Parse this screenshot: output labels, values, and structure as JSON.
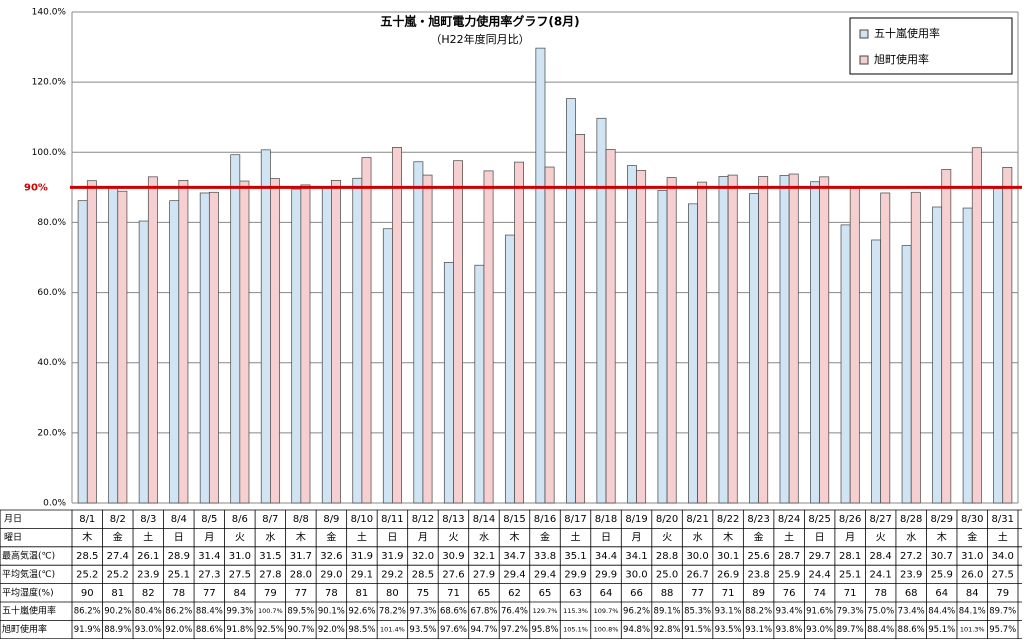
{
  "chart_data": {
    "type": "bar",
    "title": "五十嵐・旭町電力使用率グラフ(8月)",
    "subtitle": "（H22年度同月比）",
    "categories": [
      "8/1",
      "8/2",
      "8/3",
      "8/4",
      "8/5",
      "8/6",
      "8/7",
      "8/8",
      "8/9",
      "8/10",
      "8/11",
      "8/12",
      "8/13",
      "8/14",
      "8/15",
      "8/16",
      "8/17",
      "8/18",
      "8/19",
      "8/20",
      "8/21",
      "8/22",
      "8/23",
      "8/24",
      "8/25",
      "8/26",
      "8/27",
      "8/28",
      "8/29",
      "8/30",
      "8/31"
    ],
    "series": [
      {
        "name": "五十嵐使用率",
        "color": "#d0e4f4",
        "values": [
          86.2,
          90.2,
          80.4,
          86.2,
          88.4,
          99.3,
          100.7,
          89.5,
          90.1,
          92.6,
          78.2,
          97.3,
          68.6,
          67.8,
          76.4,
          129.7,
          115.3,
          109.7,
          96.2,
          89.1,
          85.3,
          93.1,
          88.2,
          93.4,
          91.6,
          79.3,
          75.0,
          73.4,
          84.4,
          84.1,
          89.7
        ],
        "value_labels": [
          "86.2%",
          "90.2%",
          "80.4%",
          "86.2%",
          "88.4%",
          "99.3%",
          "100.7%",
          "89.5%",
          "90.1%",
          "92.6%",
          "78.2%",
          "97.3%",
          "68.6%",
          "67.8%",
          "76.4%",
          "129.7%",
          "115.3%",
          "109.7%",
          "96.2%",
          "89.1%",
          "85.3%",
          "93.1%",
          "88.2%",
          "93.4%",
          "91.6%",
          "79.3%",
          "75.0%",
          "73.4%",
          "84.4%",
          "84.1%",
          "89.7%"
        ]
      },
      {
        "name": "旭町使用率",
        "color": "#f6d0d0",
        "values": [
          91.9,
          88.9,
          93.0,
          92.0,
          88.6,
          91.8,
          92.5,
          90.7,
          92.0,
          98.5,
          101.4,
          93.5,
          97.6,
          94.7,
          97.2,
          95.8,
          105.1,
          100.8,
          94.8,
          92.8,
          91.5,
          93.5,
          93.1,
          93.8,
          93.0,
          89.7,
          88.4,
          88.6,
          95.1,
          101.3,
          95.7
        ],
        "value_labels": [
          "91.9%",
          "88.9%",
          "93.0%",
          "92.0%",
          "88.6%",
          "91.8%",
          "92.5%",
          "90.7%",
          "92.0%",
          "98.5%",
          "101.4%",
          "93.5%",
          "97.6%",
          "94.7%",
          "97.2%",
          "95.8%",
          "105.1%",
          "100.8%",
          "94.8%",
          "92.8%",
          "91.5%",
          "93.5%",
          "93.1%",
          "93.8%",
          "93.0%",
          "89.7%",
          "88.4%",
          "88.6%",
          "95.1%",
          "101.3%",
          "95.7%"
        ]
      }
    ],
    "ylim": [
      0,
      140
    ],
    "yticks": [
      {
        "value": 0,
        "label": "0.0%"
      },
      {
        "value": 20,
        "label": "20.0%"
      },
      {
        "value": 40,
        "label": "40.0%"
      },
      {
        "value": 60,
        "label": "60.0%"
      },
      {
        "value": 80,
        "label": "80.0%"
      },
      {
        "value": 100,
        "label": "100.0%"
      },
      {
        "value": 120,
        "label": "120.0%"
      },
      {
        "value": 140,
        "label": "140.0%"
      }
    ],
    "grid": true,
    "legend_position": "upper-right",
    "reference_line": {
      "value": 90,
      "label": "90%",
      "color": "#cc0000"
    },
    "table": {
      "date_label": "月日",
      "weekday_label": "曜日",
      "weekdays": [
        "木",
        "金",
        "土",
        "日",
        "月",
        "火",
        "水",
        "木",
        "金",
        "土",
        "日",
        "月",
        "火",
        "水",
        "木",
        "金",
        "土",
        "日",
        "月",
        "火",
        "水",
        "木",
        "金",
        "土",
        "日",
        "月",
        "火",
        "水",
        "木",
        "金",
        "土"
      ],
      "rows": [
        {
          "label": "最高気温(℃)",
          "cells": [
            "28.5",
            "27.4",
            "26.1",
            "28.9",
            "31.4",
            "31.0",
            "31.5",
            "31.7",
            "32.6",
            "31.9",
            "31.9",
            "32.0",
            "30.9",
            "32.1",
            "34.7",
            "33.8",
            "35.1",
            "34.4",
            "34.1",
            "28.8",
            "30.0",
            "30.1",
            "25.6",
            "28.7",
            "29.7",
            "28.1",
            "28.4",
            "27.2",
            "30.7",
            "31.0",
            "34.0"
          ]
        },
        {
          "label": "平均気温(℃)",
          "cells": [
            "25.2",
            "25.2",
            "23.9",
            "25.1",
            "27.3",
            "27.5",
            "27.8",
            "28.0",
            "29.0",
            "29.1",
            "29.2",
            "28.5",
            "27.6",
            "27.9",
            "29.4",
            "29.4",
            "29.9",
            "29.9",
            "30.0",
            "25.0",
            "26.7",
            "26.9",
            "23.8",
            "25.9",
            "24.4",
            "25.1",
            "24.1",
            "23.9",
            "25.9",
            "26.0",
            "27.5"
          ]
        },
        {
          "label": "平均湿度(%)",
          "cells": [
            "90",
            "81",
            "82",
            "78",
            "77",
            "84",
            "79",
            "77",
            "78",
            "81",
            "80",
            "75",
            "71",
            "65",
            "62",
            "65",
            "63",
            "64",
            "66",
            "88",
            "77",
            "71",
            "89",
            "76",
            "74",
            "71",
            "78",
            "68",
            "64",
            "84",
            "79"
          ]
        }
      ]
    }
  }
}
